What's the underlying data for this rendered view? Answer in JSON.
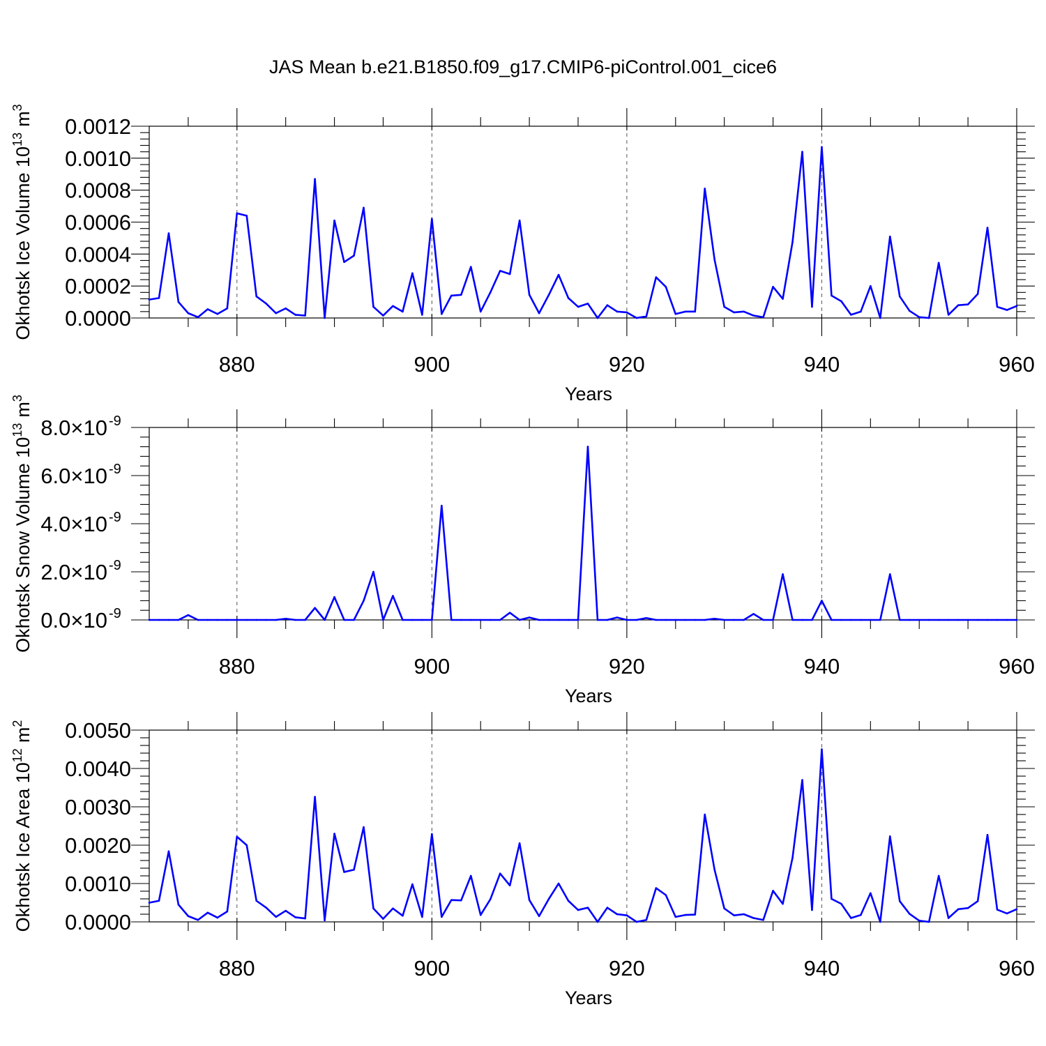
{
  "title": "JAS Mean b.e21.B1850.f09_g17.CMIP6-piControl.001_cice6",
  "colors": {
    "series": "#0000ff",
    "axis": "#000000",
    "grid": "#555555"
  },
  "chart_data": [
    {
      "type": "line",
      "title": "",
      "xlabel": "Years",
      "ylabel": "Okhotsk Ice Volume 10",
      "ylabel_sup": "13",
      "ylabel_unit": "m",
      "ylabel_unit_sup": "3",
      "xlim": [
        871,
        960
      ],
      "ylim": [
        0,
        0.0012
      ],
      "xticks": [
        880,
        900,
        920,
        940,
        960
      ],
      "xtick_labels": [
        "880",
        "900",
        "920",
        "940",
        "960"
      ],
      "yticks": [
        0,
        0.0002,
        0.0004,
        0.0006,
        0.0008,
        0.001,
        0.0012
      ],
      "ytick_labels": [
        "0.0000",
        "0.0002",
        "0.0004",
        "0.0006",
        "0.0008",
        "0.0010",
        "0.0012"
      ],
      "ytick_exponents": [],
      "grid_x": true,
      "x_start": 871,
      "values": [
        0.000115,
        0.000125,
        0.00053,
        0.0001,
        3e-05,
        5e-06,
        5.5e-05,
        2.5e-05,
        6e-05,
        0.000655,
        0.00064,
        0.000135,
        9e-05,
        3e-05,
        6e-05,
        2e-05,
        1.5e-05,
        0.00087,
        0.0,
        0.00061,
        0.00035,
        0.00039,
        0.00069,
        7e-05,
        1.5e-05,
        7.5e-05,
        4e-05,
        0.00028,
        2e-05,
        0.00062,
        2.5e-05,
        0.00014,
        0.000145,
        0.00032,
        4e-05,
        0.00016,
        0.000295,
        0.000275,
        0.00061,
        0.000145,
        3e-05,
        0.000145,
        0.00027,
        0.000125,
        7e-05,
        9e-05,
        0.0,
        8e-05,
        4e-05,
        3.5e-05,
        0.0,
        1e-05,
        0.000255,
        0.000195,
        2.5e-05,
        4e-05,
        4e-05,
        0.00081,
        0.000365,
        7e-05,
        3.5e-05,
        4e-05,
        1.5e-05,
        5e-06,
        0.000195,
        0.00012,
        0.000475,
        0.00104,
        7e-05,
        0.00107,
        0.00014,
        0.000105,
        2e-05,
        4e-05,
        0.0002,
        0.0,
        0.00051,
        0.000135,
        4.5e-05,
        5e-06,
        0.0,
        0.000345,
        2e-05,
        8e-05,
        8.5e-05,
        0.00015,
        0.000565,
        7e-05,
        5e-05,
        7.5e-05
      ]
    },
    {
      "type": "line",
      "title": "",
      "xlabel": "Years",
      "ylabel": "Okhotsk Snow Volume 10",
      "ylabel_sup": "13",
      "ylabel_unit": "m",
      "ylabel_unit_sup": "3",
      "xlim": [
        871,
        960
      ],
      "ylim": [
        0,
        8e-09
      ],
      "xticks": [
        880,
        900,
        920,
        940,
        960
      ],
      "xtick_labels": [
        "880",
        "900",
        "920",
        "940",
        "960"
      ],
      "yticks": [
        0,
        2e-09,
        4e-09,
        6e-09,
        8e-09
      ],
      "ytick_labels": [
        "0.0×10",
        "2.0×10",
        "4.0×10",
        "6.0×10",
        "8.0×10"
      ],
      "ytick_exponents": [
        "-9",
        "-9",
        "-9",
        "-9",
        "-9"
      ],
      "grid_x": true,
      "x_start": 871,
      "values": [
        0,
        0,
        0,
        0,
        2e-10,
        0,
        0,
        0,
        0,
        0,
        0,
        0,
        0,
        0,
        5e-11,
        0,
        0,
        5e-10,
        0,
        9.5e-10,
        0,
        0,
        8e-10,
        2e-09,
        0,
        1e-09,
        0,
        0,
        0,
        0,
        4.75e-09,
        0,
        0,
        0,
        0,
        0,
        0,
        3e-10,
        0,
        1e-10,
        0,
        0,
        0,
        0,
        0,
        7.2e-09,
        0,
        0,
        1e-10,
        0,
        0,
        8e-11,
        0,
        0,
        0,
        0,
        0,
        0,
        5e-11,
        0,
        0,
        0,
        2.5e-10,
        0,
        0,
        1.9e-09,
        0,
        0,
        0,
        8e-10,
        0,
        0,
        0,
        0,
        0,
        0,
        1.9e-09,
        0,
        0,
        0,
        0,
        0,
        0,
        0,
        0,
        0,
        0,
        0,
        0,
        0
      ]
    },
    {
      "type": "line",
      "title": "",
      "xlabel": "Years",
      "ylabel": "Okhotsk Ice Area 10",
      "ylabel_sup": "12",
      "ylabel_unit": "m",
      "ylabel_unit_sup": "2",
      "xlim": [
        871,
        960
      ],
      "ylim": [
        0,
        0.005
      ],
      "xticks": [
        880,
        900,
        920,
        940,
        960
      ],
      "xtick_labels": [
        "880",
        "900",
        "920",
        "940",
        "960"
      ],
      "yticks": [
        0,
        0.001,
        0.002,
        0.003,
        0.004,
        0.005
      ],
      "ytick_labels": [
        "0.0000",
        "0.0010",
        "0.0020",
        "0.0030",
        "0.0040",
        "0.0050"
      ],
      "ytick_exponents": [],
      "grid_x": true,
      "x_start": 871,
      "values": [
        0.0005,
        0.00055,
        0.00184,
        0.00045,
        0.00015,
        5e-05,
        0.00024,
        0.00011,
        0.00027,
        0.00222,
        0.002,
        0.00055,
        0.00037,
        0.00013,
        0.00029,
        0.00012,
        9e-05,
        0.00326,
        4e-05,
        0.0023,
        0.0013,
        0.00136,
        0.00247,
        0.00035,
        8e-05,
        0.00035,
        0.00016,
        0.00098,
        0.00013,
        0.00229,
        0.00013,
        0.00057,
        0.00056,
        0.0012,
        0.00018,
        0.00059,
        0.00126,
        0.00095,
        0.00205,
        0.00057,
        0.00015,
        0.0006,
        0.001,
        0.00055,
        0.00031,
        0.00037,
        0.0,
        0.00037,
        0.0002,
        0.00017,
        0.0,
        5e-05,
        0.00088,
        0.0007,
        0.00013,
        0.00018,
        0.00019,
        0.0028,
        0.00136,
        0.00035,
        0.00017,
        0.0002,
        0.0001,
        5e-05,
        0.00081,
        0.00047,
        0.00167,
        0.0037,
        0.00031,
        0.0045,
        0.0006,
        0.00047,
        0.0001,
        0.00018,
        0.00075,
        0.0,
        0.00223,
        0.00054,
        0.00021,
        3e-05,
        0.0,
        0.0012,
        0.0001,
        0.00033,
        0.00036,
        0.00054,
        0.00227,
        0.00032,
        0.00022,
        0.00033
      ]
    }
  ]
}
